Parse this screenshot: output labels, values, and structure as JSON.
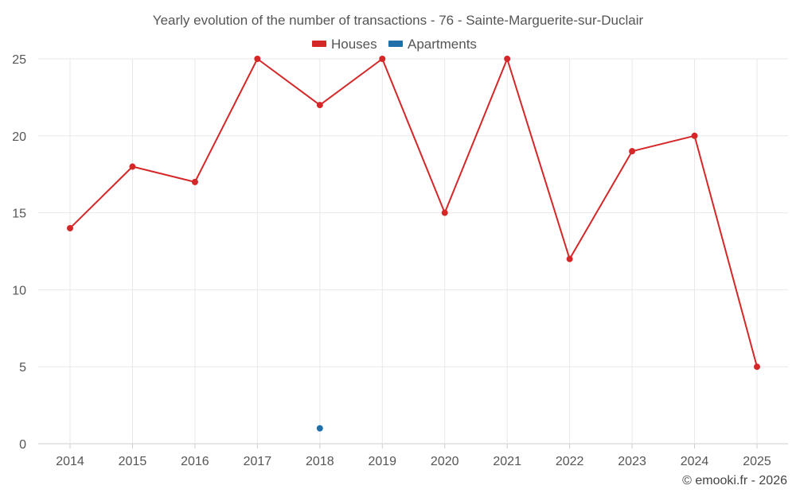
{
  "chart_data": {
    "type": "line",
    "title": "Yearly evolution of the number of transactions - 76 - Sainte-Marguerite-sur-Duclair",
    "xlabel": "",
    "ylabel": "",
    "categories": [
      "2014",
      "2015",
      "2016",
      "2017",
      "2018",
      "2019",
      "2020",
      "2021",
      "2022",
      "2023",
      "2024",
      "2025"
    ],
    "ylim": [
      0,
      25
    ],
    "yticks": [
      0,
      5,
      10,
      15,
      20,
      25
    ],
    "grid": true,
    "legend_position": "top-center",
    "series": [
      {
        "name": "Houses",
        "color": "#d62728",
        "values": [
          14,
          18,
          17,
          25,
          22,
          25,
          15,
          25,
          12,
          19,
          20,
          5
        ]
      },
      {
        "name": "Apartments",
        "color": "#1f6fa8",
        "values": [
          null,
          null,
          null,
          null,
          1,
          null,
          null,
          null,
          null,
          null,
          null,
          null
        ]
      }
    ]
  },
  "credit": "© emooki.fr - 2026"
}
